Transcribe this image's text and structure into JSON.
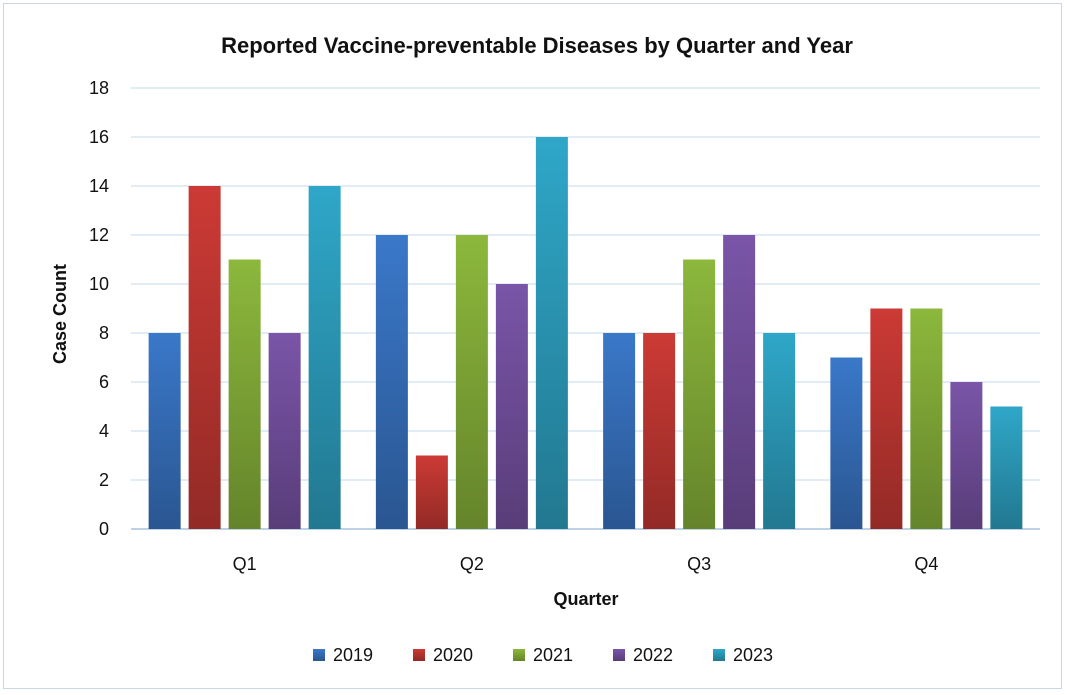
{
  "chart_data": {
    "type": "bar",
    "title": "Reported Vaccine-preventable Diseases by Quarter and Year",
    "xlabel": "Quarter",
    "ylabel": "Case Count",
    "categories": [
      "Q1",
      "Q2",
      "Q3",
      "Q4"
    ],
    "ylim": [
      0,
      18
    ],
    "yticks": [
      0,
      2,
      4,
      6,
      8,
      10,
      12,
      14,
      16,
      18
    ],
    "grid": true,
    "legend_position": "bottom",
    "series": [
      {
        "name": "2019",
        "values": [
          8,
          12,
          8,
          7
        ],
        "color": "#3a78c9"
      },
      {
        "name": "2020",
        "values": [
          14,
          3,
          8,
          9
        ],
        "color": "#cc3a35"
      },
      {
        "name": "2021",
        "values": [
          11,
          12,
          11,
          9
        ],
        "color": "#8cb83c"
      },
      {
        "name": "2022",
        "values": [
          8,
          10,
          12,
          6
        ],
        "color": "#7a55a8"
      },
      {
        "name": "2023",
        "values": [
          14,
          16,
          8,
          5
        ],
        "color": "#2fa7c8"
      }
    ]
  }
}
